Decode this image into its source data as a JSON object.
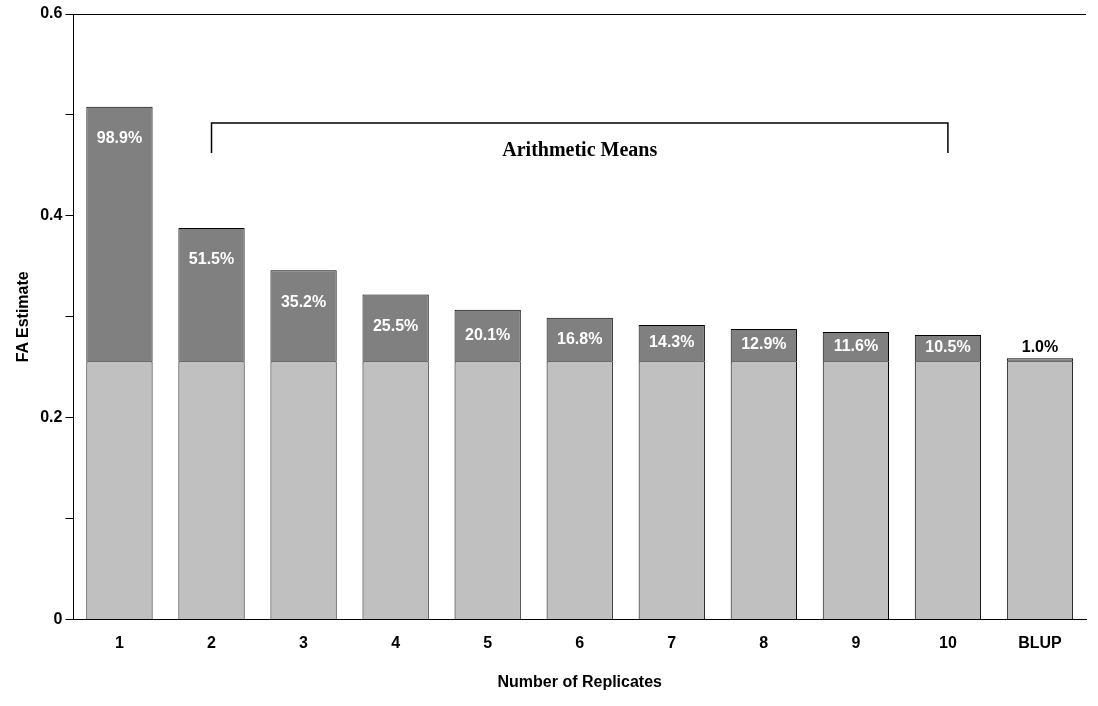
{
  "chart_data": {
    "type": "bar",
    "stacked": true,
    "xlabel": "Number of Replicates",
    "ylabel": "FA Estimate",
    "categories": [
      "1",
      "2",
      "3",
      "4",
      "5",
      "6",
      "7",
      "8",
      "9",
      "10",
      "BLUP"
    ],
    "series": [
      {
        "color": "#c0c0c0",
        "values": [
          0.256,
          0.256,
          0.256,
          0.256,
          0.256,
          0.256,
          0.256,
          0.256,
          0.256,
          0.256,
          0.256
        ]
      },
      {
        "color": "#808080",
        "values": [
          0.252,
          0.132,
          0.09,
          0.066,
          0.051,
          0.043,
          0.036,
          0.032,
          0.029,
          0.026,
          0.003
        ]
      }
    ],
    "ylim": [
      0,
      0.6
    ],
    "yticks": [
      0,
      {
        "value": 0.1,
        "label": null
      },
      0.2,
      {
        "value": 0.3,
        "label": null
      },
      0.4,
      {
        "value": 0.5,
        "label": null
      },
      0.6
    ],
    "grid": false,
    "legend": false,
    "annotations": [
      "Arithmetic Means",
      {
        "text": "98.9%",
        "x": "1",
        "y": 0.508
      },
      {
        "text": "51.5%",
        "x": "2",
        "y": 0.388
      },
      {
        "text": "35.2%",
        "x": "3",
        "y": 0.346
      },
      {
        "text": "25.5%",
        "x": "4",
        "y": 0.322
      },
      {
        "text": "20.1%",
        "x": "5",
        "y": 0.307
      },
      {
        "text": "16.8%",
        "x": "6",
        "y": 0.299
      },
      {
        "text": "14.3%",
        "x": "7",
        "y": 0.292
      },
      {
        "text": "12.9%",
        "x": "8",
        "y": 0.288
      },
      {
        "text": "11.6%",
        "x": "9",
        "y": 0.285
      },
      {
        "text": "10.5%",
        "x": "10",
        "y": 0.282
      },
      {
        "text": "1.0%",
        "x": "BLUP",
        "y": 0.259
      }
    ]
  }
}
